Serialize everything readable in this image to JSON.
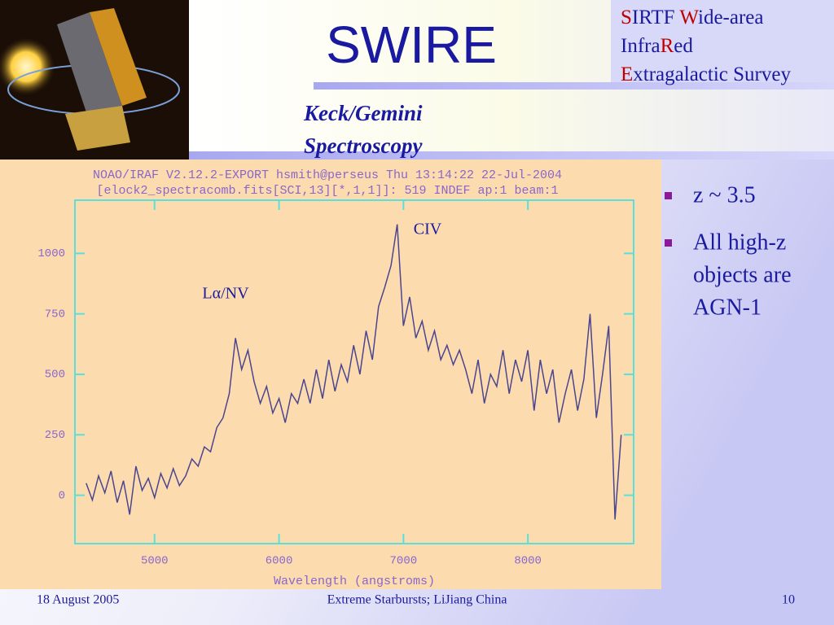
{
  "header": {
    "title": "SWIRE",
    "acronym_lines": [
      [
        {
          "text": "S",
          "color": "#c00000"
        },
        {
          "text": "IRTF ",
          "color": "#1a1aa0"
        },
        {
          "text": "W",
          "color": "#c00000"
        },
        {
          "text": "ide-area",
          "color": "#1a1aa0"
        }
      ],
      [
        {
          "text": "Infra",
          "color": "#1a1aa0"
        },
        {
          "text": "R",
          "color": "#c00000"
        },
        {
          "text": "ed",
          "color": "#1a1aa0"
        }
      ],
      [
        {
          "text": "E",
          "color": "#c00000"
        },
        {
          "text": "xtragalactic Survey",
          "color": "#1a1aa0"
        }
      ]
    ],
    "subtitle_lines": [
      "Keck/Gemini",
      "Spectroscopy"
    ]
  },
  "bullets": [
    [
      "z ~ 3.5"
    ],
    [
      "All high-z",
      "objects are",
      "AGN-1"
    ]
  ],
  "footer": {
    "date": "18 August 2005",
    "center": "Extreme Starbursts; LiJiang China",
    "page": "10"
  },
  "chart_data": {
    "type": "line",
    "header_lines": [
      "NOAO/IRAF V2.12.2-EXPORT hsmith@perseus Thu 13:14:22 22-Jul-2004",
      "[elock2_spectracomb.fits[SCI,13][*,1,1]]: 519 INDEF ap:1 beam:1"
    ],
    "x_label": "Wavelength (angstroms)",
    "annotations": [
      "CIV",
      "Lα/NV"
    ],
    "color": "#4b4590",
    "grid": false,
    "xlim": [
      4360,
      8850
    ],
    "xticks": [
      5000,
      6000,
      7000,
      8000
    ],
    "ylim": [
      -200,
      1220
    ],
    "yticks": [
      0,
      250,
      500,
      750,
      1000
    ],
    "x": [
      4450,
      4500,
      4550,
      4600,
      4650,
      4700,
      4750,
      4800,
      4850,
      4900,
      4950,
      5000,
      5050,
      5100,
      5150,
      5200,
      5250,
      5300,
      5350,
      5400,
      5450,
      5500,
      5550,
      5600,
      5650,
      5700,
      5750,
      5800,
      5850,
      5900,
      5950,
      6000,
      6050,
      6100,
      6150,
      6200,
      6250,
      6300,
      6350,
      6400,
      6450,
      6500,
      6550,
      6600,
      6650,
      6700,
      6750,
      6800,
      6850,
      6900,
      6950,
      7000,
      7050,
      7100,
      7150,
      7200,
      7250,
      7300,
      7350,
      7400,
      7450,
      7500,
      7550,
      7600,
      7650,
      7700,
      7750,
      7800,
      7850,
      7900,
      7950,
      8000,
      8050,
      8100,
      8150,
      8200,
      8250,
      8300,
      8350,
      8400,
      8450,
      8500,
      8550,
      8600,
      8650,
      8700,
      8750
    ],
    "values": [
      50,
      -20,
      80,
      10,
      100,
      -30,
      60,
      -80,
      120,
      20,
      70,
      -10,
      90,
      30,
      110,
      40,
      80,
      150,
      120,
      200,
      180,
      280,
      320,
      420,
      650,
      520,
      600,
      470,
      380,
      450,
      340,
      400,
      300,
      420,
      380,
      480,
      380,
      520,
      400,
      560,
      430,
      540,
      470,
      620,
      500,
      680,
      560,
      780,
      860,
      950,
      1120,
      700,
      820,
      650,
      720,
      600,
      680,
      560,
      620,
      540,
      600,
      520,
      420,
      560,
      380,
      500,
      450,
      600,
      420,
      560,
      470,
      600,
      350,
      560,
      420,
      520,
      300,
      420,
      520,
      350,
      480,
      750,
      320,
      500,
      700,
      -100,
      250
    ]
  }
}
